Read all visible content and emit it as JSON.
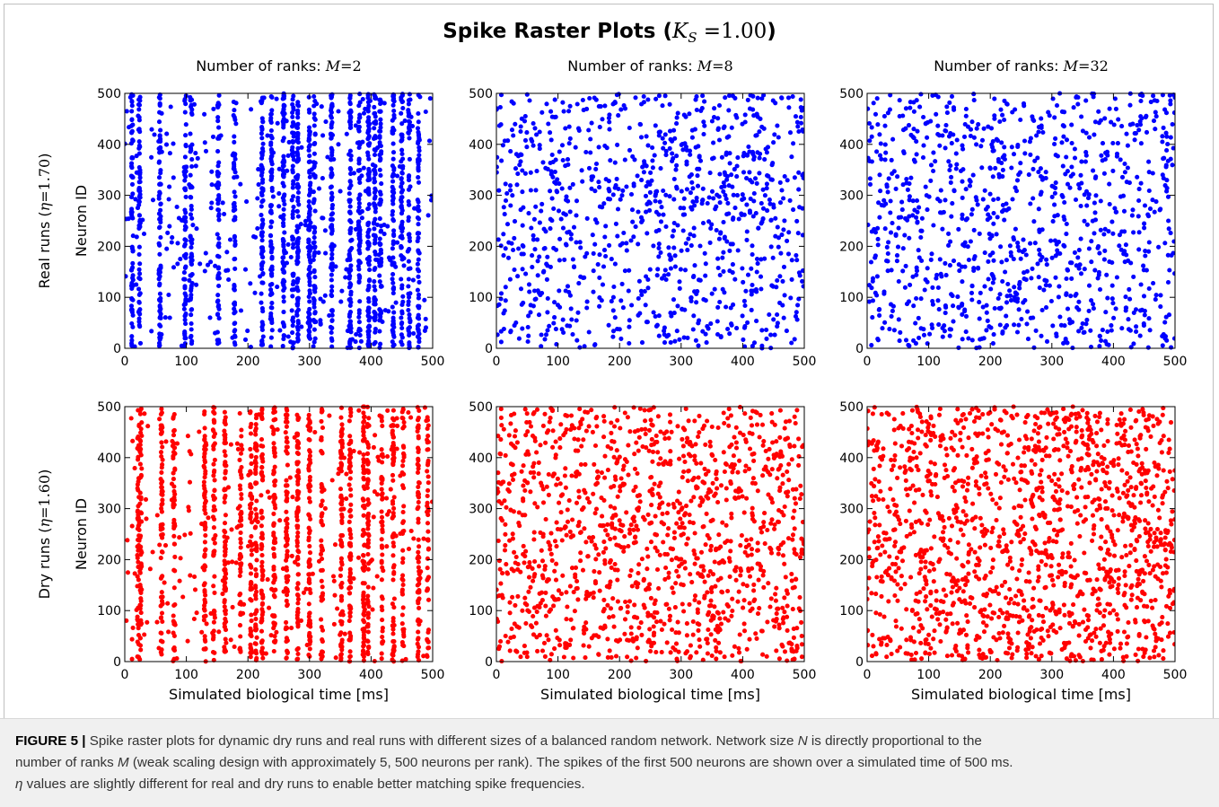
{
  "title": {
    "main": "Spike Raster Plots (",
    "k_symbol": "K",
    "k_sub": "S",
    "k_value": " =1.00",
    "close": ")"
  },
  "column_titles": [
    {
      "prefix": "Number of ranks: ",
      "symbol": "M",
      "value": "=2"
    },
    {
      "prefix": "Number of ranks: ",
      "symbol": "M",
      "value": "=8"
    },
    {
      "prefix": "Number of ranks: ",
      "symbol": "M",
      "value": "=32"
    }
  ],
  "row_labels": [
    {
      "prefix": "Real runs (",
      "symbol": "η",
      "value": "=1.70",
      "suffix": ")"
    },
    {
      "prefix": "Dry runs (",
      "symbol": "η",
      "value": "=1.60",
      "suffix": ")"
    }
  ],
  "axis_labels": {
    "y": "Neuron ID",
    "x": "Simulated biological time [ms]"
  },
  "colors": {
    "real": "#0000ff",
    "dry": "#ff0000"
  },
  "caption": {
    "lead": "FIGURE 5 |",
    "line1_a": " Spike raster plots for dynamic dry runs and real runs with different sizes of a balanced random network. Network size ",
    "line1_n": "N",
    "line1_b": " is directly proportional to the",
    "line2_a": "number of ranks ",
    "line2_m": "M",
    "line2_b": " (weak scaling design with approximately 5, 500 neurons per rank). The spikes of the first 500 neurons are shown over a simulated time of 500 ms.",
    "line3_eta": "η",
    "line3_b": " values are slightly different for real and dry runs to enable better matching spike frequencies."
  },
  "chart_data": [
    {
      "type": "scatter",
      "row": "Real runs",
      "ranks": 2,
      "color": "#0000ff",
      "xlim": [
        0,
        500
      ],
      "ylim": [
        0,
        500
      ],
      "xticks": [
        0,
        100,
        200,
        300,
        400,
        500
      ],
      "yticks": [
        0,
        100,
        200,
        300,
        400,
        500
      ],
      "ylabel": "Neuron ID",
      "xlabel": "",
      "spikes_approx": 1600,
      "synchronized_columns_ms": [
        12,
        24,
        57,
        98,
        108,
        152,
        178,
        223,
        238,
        258,
        273,
        281,
        300,
        308,
        336,
        366,
        381,
        396,
        406,
        415,
        436,
        450,
        462,
        477
      ]
    },
    {
      "type": "scatter",
      "row": "Real runs",
      "ranks": 8,
      "color": "#0000ff",
      "xlim": [
        0,
        500
      ],
      "ylim": [
        0,
        500
      ],
      "xticks": [
        0,
        100,
        200,
        300,
        400,
        500
      ],
      "yticks": [
        0,
        100,
        200,
        300,
        400,
        500
      ],
      "ylabel": "",
      "xlabel": "",
      "spikes_approx": 1000
    },
    {
      "type": "scatter",
      "row": "Real runs",
      "ranks": 32,
      "color": "#0000ff",
      "xlim": [
        0,
        500
      ],
      "ylim": [
        0,
        500
      ],
      "xticks": [
        0,
        100,
        200,
        300,
        400,
        500
      ],
      "yticks": [
        0,
        100,
        200,
        300,
        400,
        500
      ],
      "ylabel": "",
      "xlabel": "",
      "spikes_approx": 1000
    },
    {
      "type": "scatter",
      "row": "Dry runs",
      "ranks": 2,
      "color": "#ff0000",
      "xlim": [
        0,
        500
      ],
      "ylim": [
        0,
        500
      ],
      "xticks": [
        0,
        100,
        200,
        300,
        400,
        500
      ],
      "yticks": [
        0,
        100,
        200,
        300,
        400,
        500
      ],
      "ylabel": "Neuron ID",
      "xlabel": "Simulated biological time [ms]",
      "spikes_approx": 1500,
      "synchronized_columns_ms": [
        22,
        26,
        60,
        80,
        130,
        145,
        163,
        188,
        205,
        213,
        223,
        243,
        263,
        281,
        300,
        320,
        352,
        366,
        388,
        395,
        418,
        436,
        452,
        477,
        492
      ]
    },
    {
      "type": "scatter",
      "row": "Dry runs",
      "ranks": 8,
      "color": "#ff0000",
      "xlim": [
        0,
        500
      ],
      "ylim": [
        0,
        500
      ],
      "xticks": [
        0,
        100,
        200,
        300,
        400,
        500
      ],
      "yticks": [
        0,
        100,
        200,
        300,
        400,
        500
      ],
      "ylabel": "",
      "xlabel": "Simulated biological time [ms]",
      "spikes_approx": 1300
    },
    {
      "type": "scatter",
      "row": "Dry runs",
      "ranks": 32,
      "color": "#ff0000",
      "xlim": [
        0,
        500
      ],
      "ylim": [
        0,
        500
      ],
      "xticks": [
        0,
        100,
        200,
        300,
        400,
        500
      ],
      "yticks": [
        0,
        100,
        200,
        300,
        400,
        500
      ],
      "ylabel": "",
      "xlabel": "Simulated biological time [ms]",
      "spikes_approx": 1500
    }
  ]
}
